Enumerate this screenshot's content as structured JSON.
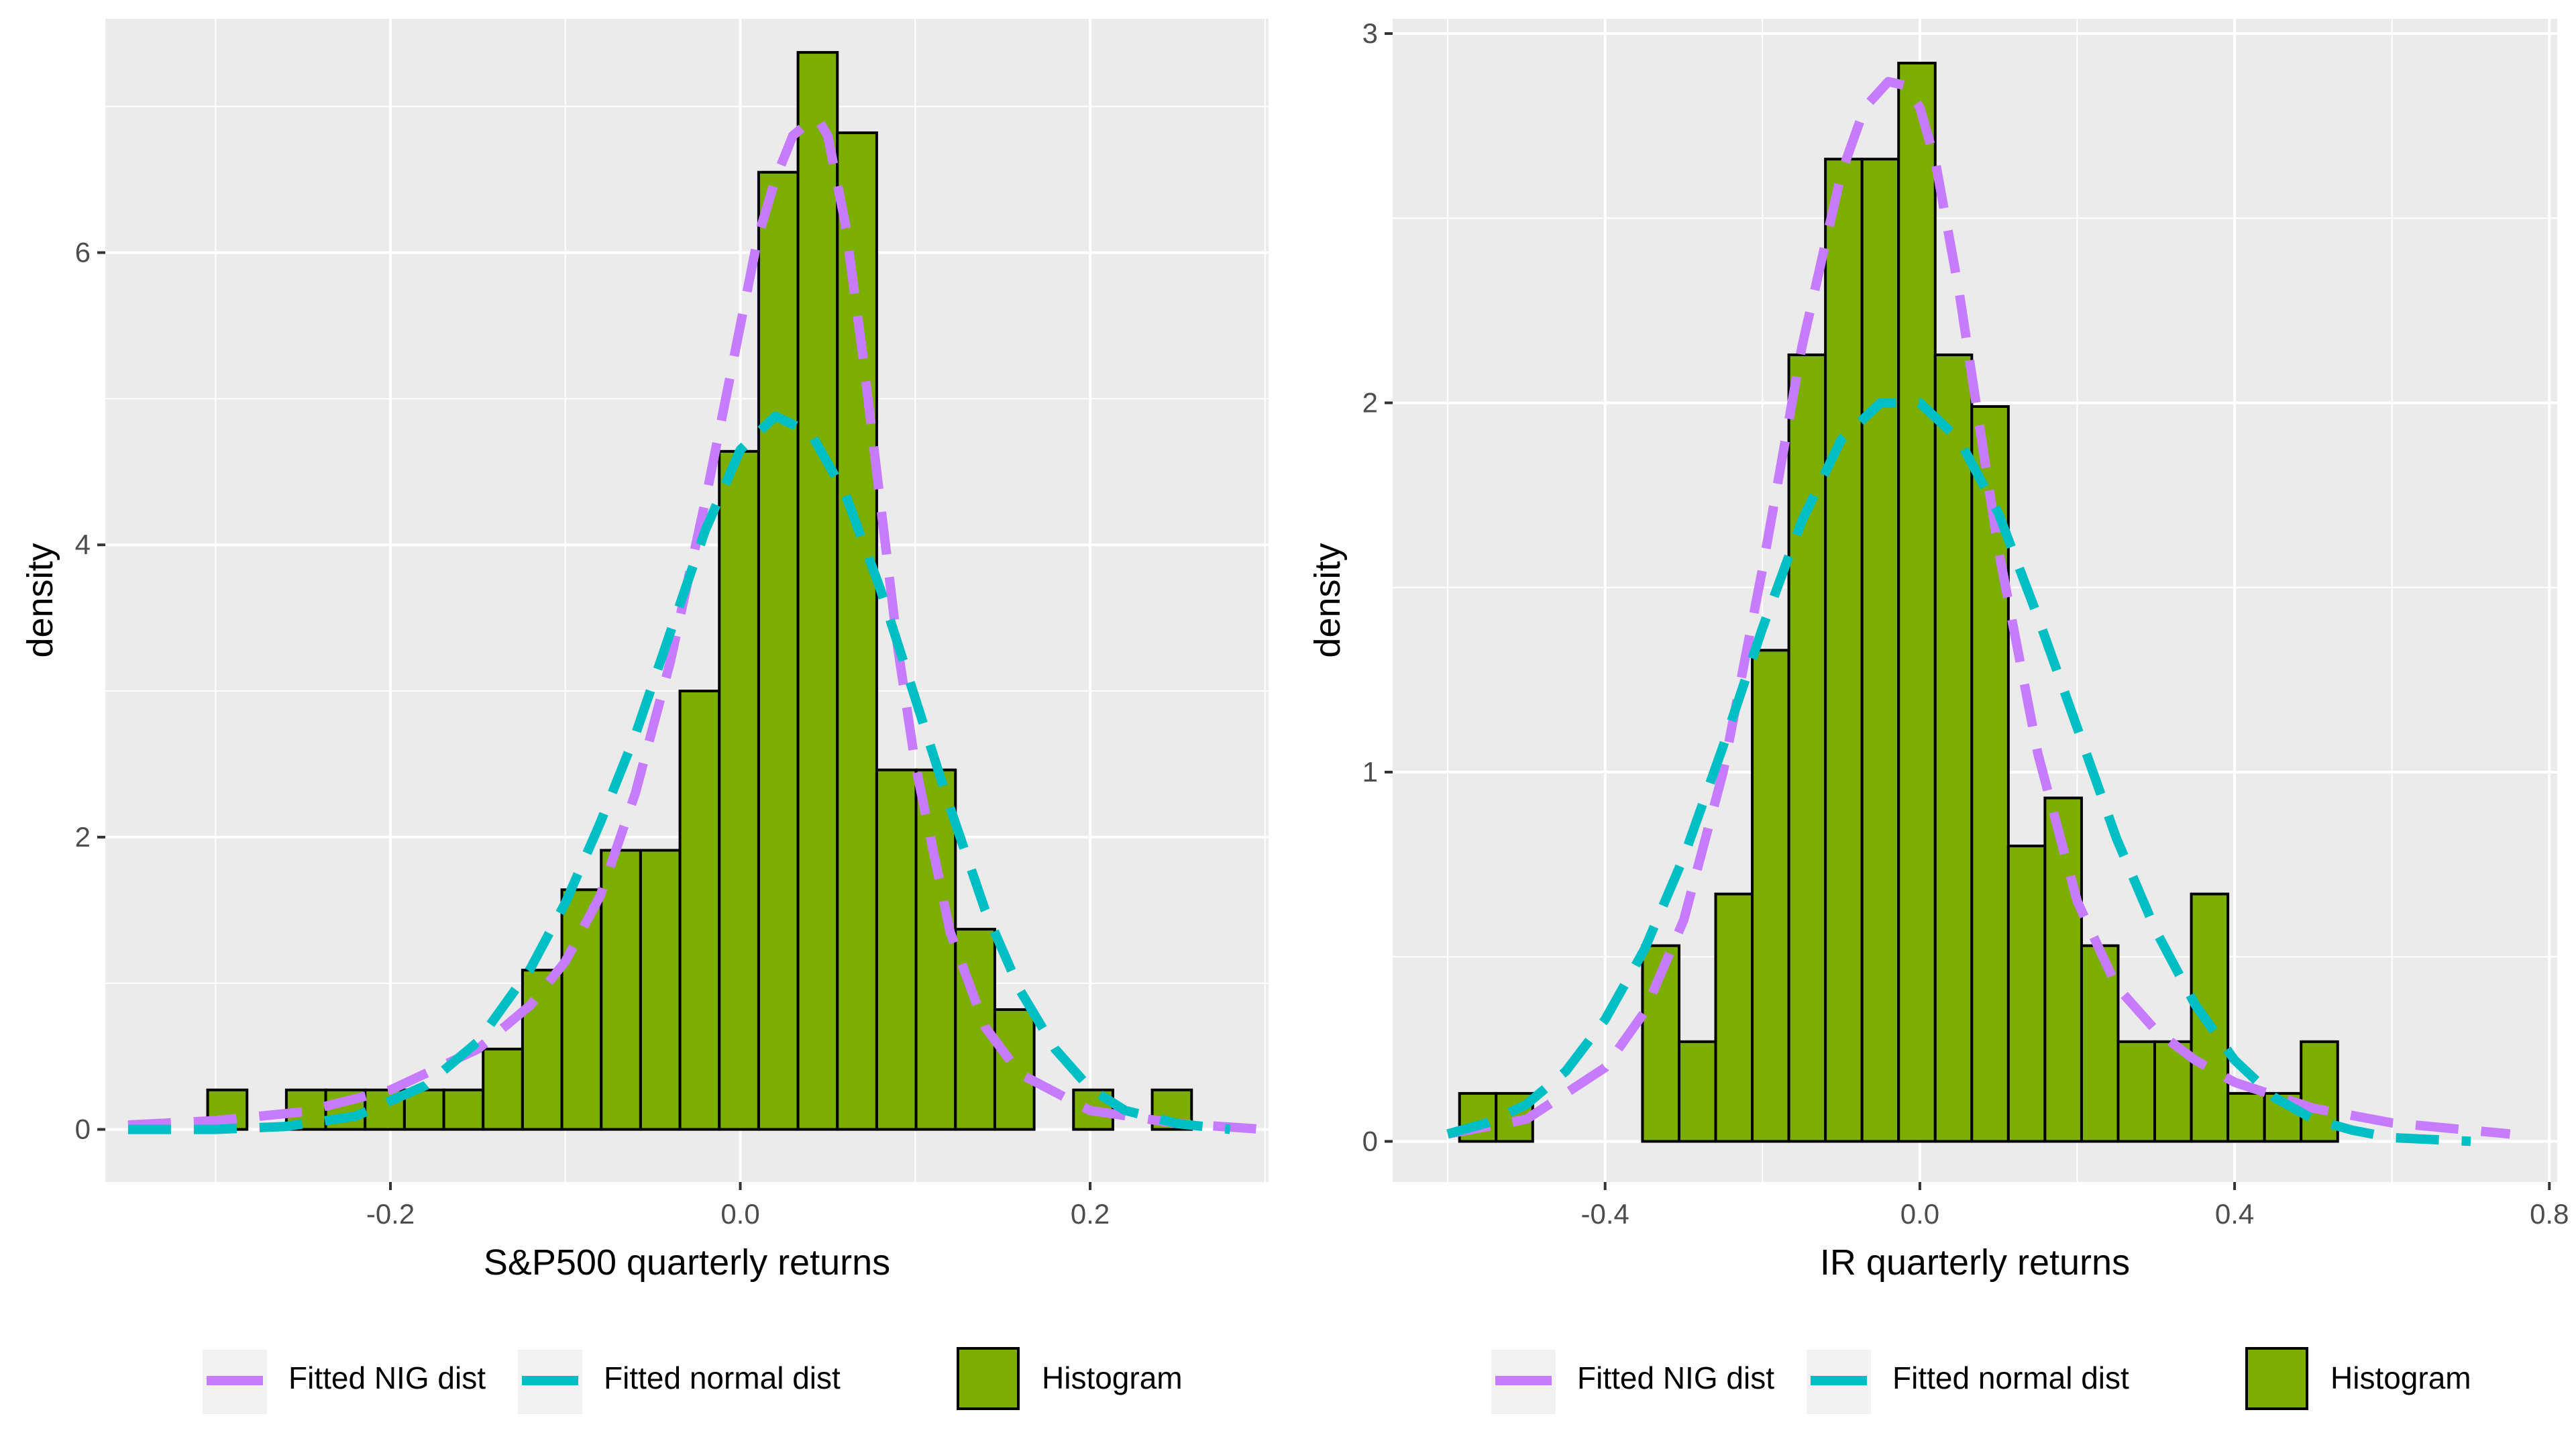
{
  "legend": {
    "nig_label": "Fitted NIG dist",
    "normal_label": "Fitted normal dist",
    "hist_label": "Histogram"
  },
  "colors": {
    "panel_bg": "#EBEBEB",
    "grid": "#FFFFFF",
    "bar_fill": "#7CAE00",
    "bar_stroke": "#000000",
    "nig_line": "#C77CFF",
    "normal_line": "#00BFC4",
    "tick_text": "#4D4D4D"
  },
  "chart_data": [
    {
      "type": "bar",
      "xlabel": "S&P500 quarterly returns",
      "ylabel": "density",
      "xlim": [
        -0.363,
        0.302
      ],
      "ylim": [
        -0.36,
        7.6
      ],
      "x_ticks": [
        -0.2,
        0.0,
        0.2
      ],
      "x_tick_labels": [
        "-0.2",
        "0.0",
        "0.2"
      ],
      "y_ticks": [
        0,
        2,
        4,
        6
      ],
      "y_tick_labels": [
        "0",
        "2",
        "4",
        "6"
      ],
      "grid": true,
      "legend_position": "bottom",
      "histogram": {
        "bin_width": 0.0225,
        "bins": [
          {
            "x0": -0.3045,
            "density": 0.27
          },
          {
            "x0": -0.282,
            "density": 0.0
          },
          {
            "x0": -0.2595,
            "density": 0.27
          },
          {
            "x0": -0.237,
            "density": 0.27
          },
          {
            "x0": -0.2145,
            "density": 0.27
          },
          {
            "x0": -0.192,
            "density": 0.27
          },
          {
            "x0": -0.1695,
            "density": 0.27
          },
          {
            "x0": -0.147,
            "density": 0.55
          },
          {
            "x0": -0.1245,
            "density": 1.09
          },
          {
            "x0": -0.102,
            "density": 1.64
          },
          {
            "x0": -0.0795,
            "density": 1.91
          },
          {
            "x0": -0.057,
            "density": 1.91
          },
          {
            "x0": -0.0345,
            "density": 3.0
          },
          {
            "x0": -0.012,
            "density": 4.64
          },
          {
            "x0": 0.0105,
            "density": 6.55
          },
          {
            "x0": 0.033,
            "density": 7.37
          },
          {
            "x0": 0.0555,
            "density": 6.82
          },
          {
            "x0": 0.078,
            "density": 2.46
          },
          {
            "x0": 0.1005,
            "density": 2.46
          },
          {
            "x0": 0.123,
            "density": 1.37
          },
          {
            "x0": 0.1455,
            "density": 0.82
          },
          {
            "x0": 0.168,
            "density": 0.0
          },
          {
            "x0": 0.1905,
            "density": 0.27
          },
          {
            "x0": 0.213,
            "density": 0.0
          },
          {
            "x0": 0.2355,
            "density": 0.27
          }
        ]
      },
      "series": [
        {
          "name": "Fitted NIG dist",
          "x": [
            -0.35,
            -0.3,
            -0.25,
            -0.2,
            -0.15,
            -0.12,
            -0.1,
            -0.08,
            -0.06,
            -0.04,
            -0.02,
            0.0,
            0.01,
            0.02,
            0.03,
            0.04,
            0.045,
            0.05,
            0.06,
            0.07,
            0.08,
            0.09,
            0.1,
            0.12,
            0.14,
            0.16,
            0.2,
            0.25,
            0.3
          ],
          "y": [
            0.03,
            0.06,
            0.12,
            0.27,
            0.55,
            0.85,
            1.15,
            1.6,
            2.3,
            3.2,
            4.3,
            5.5,
            6.1,
            6.5,
            6.8,
            6.9,
            6.9,
            6.8,
            6.2,
            5.3,
            4.3,
            3.3,
            2.5,
            1.35,
            0.7,
            0.38,
            0.13,
            0.04,
            0.0
          ]
        },
        {
          "name": "Fitted normal dist",
          "x": [
            -0.35,
            -0.3,
            -0.26,
            -0.22,
            -0.18,
            -0.15,
            -0.12,
            -0.1,
            -0.08,
            -0.06,
            -0.04,
            -0.02,
            0.0,
            0.02,
            0.04,
            0.06,
            0.08,
            0.1,
            0.12,
            0.14,
            0.16,
            0.18,
            0.2,
            0.22,
            0.25,
            0.28
          ],
          "y": [
            0.0,
            0.0,
            0.02,
            0.09,
            0.3,
            0.6,
            1.1,
            1.55,
            2.1,
            2.7,
            3.4,
            4.1,
            4.65,
            4.88,
            4.77,
            4.35,
            3.7,
            2.95,
            2.2,
            1.5,
            0.95,
            0.55,
            0.28,
            0.13,
            0.04,
            0.0
          ]
        }
      ]
    },
    {
      "type": "bar",
      "xlabel": "IR quarterly returns",
      "ylabel": "density",
      "xlim": [
        -0.67,
        0.81
      ],
      "ylim": [
        -0.11,
        3.04
      ],
      "x_ticks": [
        -0.4,
        0.0,
        0.4,
        0.8
      ],
      "x_tick_labels": [
        "-0.4",
        "0.0",
        "0.4",
        "0.8"
      ],
      "y_ticks": [
        0,
        1,
        2,
        3
      ],
      "y_tick_labels": [
        "0",
        "1",
        "2",
        "3"
      ],
      "grid": true,
      "legend_position": "bottom",
      "histogram": {
        "bin_width": 0.0465,
        "bins": [
          {
            "x0": -0.585,
            "density": 0.13
          },
          {
            "x0": -0.5385,
            "density": 0.13
          },
          {
            "x0": -0.492,
            "density": 0.0
          },
          {
            "x0": -0.4455,
            "density": 0.0
          },
          {
            "x0": -0.399,
            "density": 0.0
          },
          {
            "x0": -0.3525,
            "density": 0.53
          },
          {
            "x0": -0.306,
            "density": 0.27
          },
          {
            "x0": -0.2595,
            "density": 0.67
          },
          {
            "x0": -0.213,
            "density": 1.33
          },
          {
            "x0": -0.1665,
            "density": 2.13
          },
          {
            "x0": -0.12,
            "density": 2.66
          },
          {
            "x0": -0.0735,
            "density": 2.66
          },
          {
            "x0": -0.027,
            "density": 2.92
          },
          {
            "x0": 0.0195,
            "density": 2.13
          },
          {
            "x0": 0.066,
            "density": 1.99
          },
          {
            "x0": 0.1125,
            "density": 0.8
          },
          {
            "x0": 0.159,
            "density": 0.93
          },
          {
            "x0": 0.2055,
            "density": 0.53
          },
          {
            "x0": 0.252,
            "density": 0.27
          },
          {
            "x0": 0.2985,
            "density": 0.27
          },
          {
            "x0": 0.345,
            "density": 0.67
          },
          {
            "x0": 0.3915,
            "density": 0.13
          },
          {
            "x0": 0.438,
            "density": 0.13
          },
          {
            "x0": 0.4845,
            "density": 0.27
          },
          {
            "x0": 0.531,
            "density": 0.0
          },
          {
            "x0": 0.5775,
            "density": 0.0
          },
          {
            "x0": 0.624,
            "density": 0.0
          }
        ]
      },
      "series": [
        {
          "name": "Fitted NIG dist",
          "x": [
            -0.6,
            -0.5,
            -0.4,
            -0.35,
            -0.3,
            -0.25,
            -0.2,
            -0.15,
            -0.1,
            -0.07,
            -0.04,
            -0.02,
            0.0,
            0.02,
            0.05,
            0.1,
            0.15,
            0.2,
            0.25,
            0.3,
            0.35,
            0.4,
            0.5,
            0.6,
            0.75
          ],
          "y": [
            0.02,
            0.06,
            0.2,
            0.35,
            0.6,
            1.0,
            1.55,
            2.15,
            2.62,
            2.8,
            2.87,
            2.86,
            2.8,
            2.65,
            2.3,
            1.6,
            1.05,
            0.65,
            0.42,
            0.3,
            0.22,
            0.16,
            0.09,
            0.05,
            0.02
          ]
        },
        {
          "name": "Fitted normal dist",
          "x": [
            -0.6,
            -0.55,
            -0.5,
            -0.45,
            -0.4,
            -0.35,
            -0.3,
            -0.25,
            -0.2,
            -0.15,
            -0.1,
            -0.05,
            0.0,
            0.05,
            0.1,
            0.15,
            0.2,
            0.25,
            0.3,
            0.35,
            0.4,
            0.45,
            0.5,
            0.55,
            0.6,
            0.7
          ],
          "y": [
            0.02,
            0.05,
            0.1,
            0.19,
            0.33,
            0.52,
            0.77,
            1.07,
            1.39,
            1.68,
            1.9,
            2.0,
            2.0,
            1.9,
            1.7,
            1.42,
            1.12,
            0.82,
            0.57,
            0.37,
            0.22,
            0.12,
            0.06,
            0.03,
            0.01,
            0.0
          ]
        }
      ]
    }
  ]
}
